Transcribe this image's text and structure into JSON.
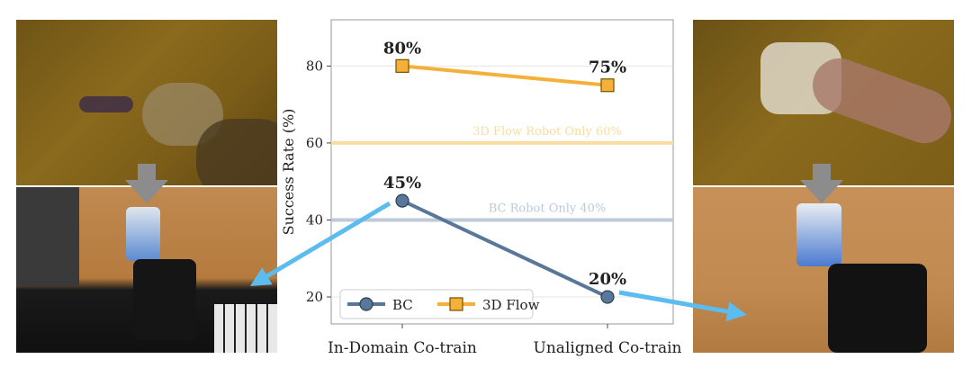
{
  "chart_data": {
    "type": "line",
    "categories": [
      "In-Domain Co-train",
      "Unaligned Co-train"
    ],
    "ylabel": "Success Rate (%)",
    "xlabel": "",
    "yticks": [
      20,
      40,
      60,
      80
    ],
    "ylim": [
      13,
      92
    ],
    "grid": true,
    "legend_position": "bottom-left",
    "series": [
      {
        "name": "BC",
        "values": [
          45,
          20
        ],
        "labels": [
          "45%",
          "20%"
        ],
        "color": "#587799",
        "marker": "circle"
      },
      {
        "name": "3D Flow",
        "values": [
          80,
          75
        ],
        "labels": [
          "80%",
          "75%"
        ],
        "color": "#F4B13A",
        "marker": "square"
      }
    ],
    "reference_lines": [
      {
        "label": "3D Flow Robot Only 60%",
        "value": 60,
        "color": "#F8DCA0"
      },
      {
        "label": "BC Robot Only 40%",
        "value": 40,
        "color": "#BCCAD9"
      }
    ]
  },
  "photos": [
    {
      "name": "left-human-video-frame",
      "color": "#8a6a1c"
    },
    {
      "name": "left-robot-frame",
      "color": "#b57a3e"
    },
    {
      "name": "right-human-video-frame",
      "color": "#8a6a1c"
    },
    {
      "name": "right-robot-frame",
      "color": "#c08a50"
    }
  ],
  "arrow_colors": {
    "down": "#8c8c8c",
    "pointer": "#5cbcf0"
  }
}
